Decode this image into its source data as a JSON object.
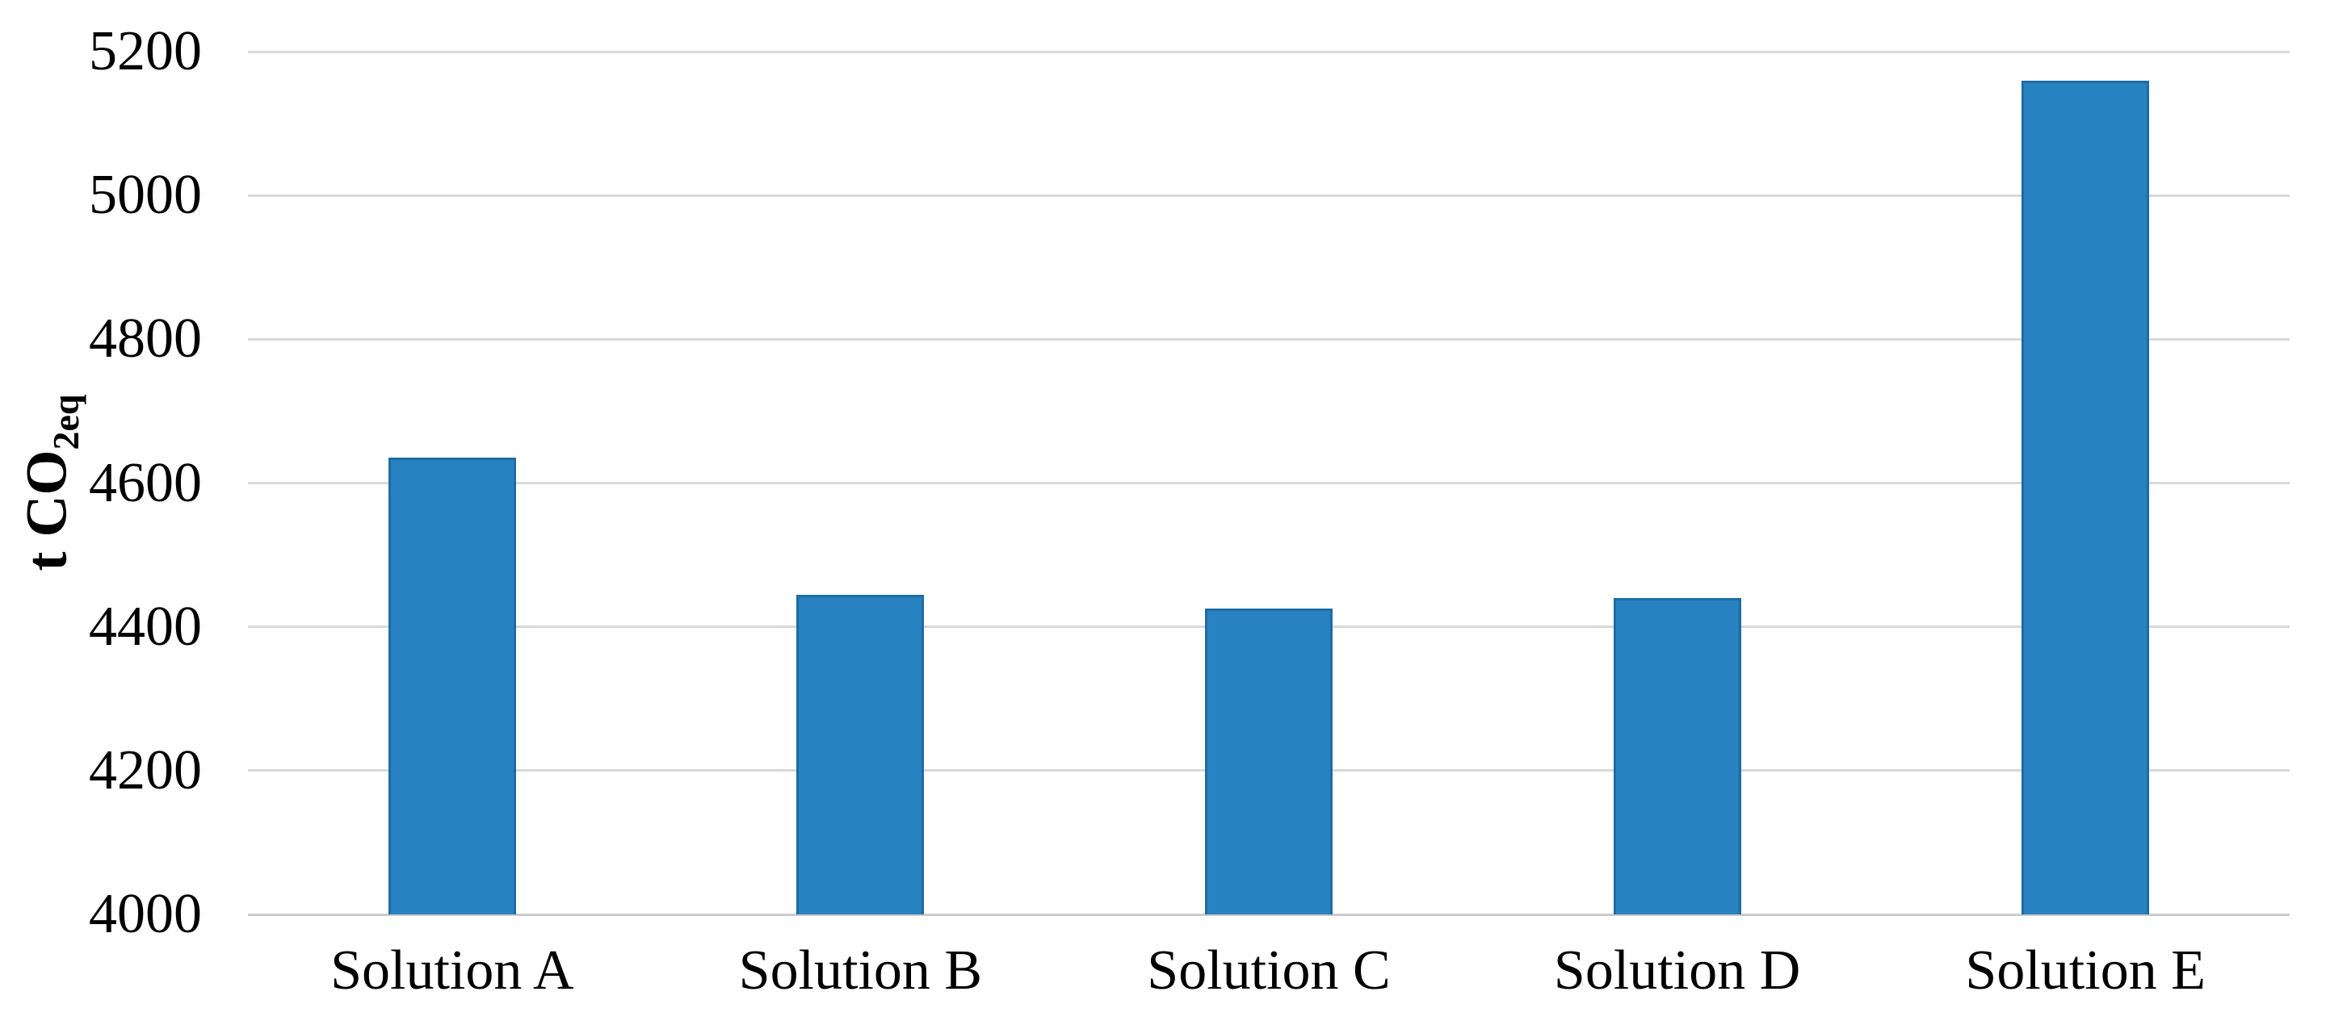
{
  "chart_data": {
    "type": "bar",
    "title": "",
    "xlabel": "",
    "ylabel": "t CO2eq",
    "ylabel_parts": {
      "main": "t CO",
      "sub": "2eq"
    },
    "categories": [
      "Solution A",
      "Solution B",
      "Solution C",
      "Solution D",
      "Solution E"
    ],
    "values": [
      4635,
      4445,
      4425,
      4440,
      5160
    ],
    "series": [
      {
        "name": "t CO2eq",
        "values": [
          4635,
          4445,
          4425,
          4440,
          5160
        ]
      }
    ],
    "ylim": [
      4000,
      5200
    ],
    "ytick_step": 200,
    "yticks": [
      4000,
      4200,
      4400,
      4600,
      4800,
      5000,
      5200
    ],
    "grid": true,
    "legend_position": "none",
    "colors": {
      "bar_fill": "#2882C1",
      "bar_border": "#1E6CA4",
      "gridline": "#D9D9D9",
      "axis_baseline": "#CBCBCB",
      "text": "#000000",
      "background": "#FFFFFF"
    }
  }
}
